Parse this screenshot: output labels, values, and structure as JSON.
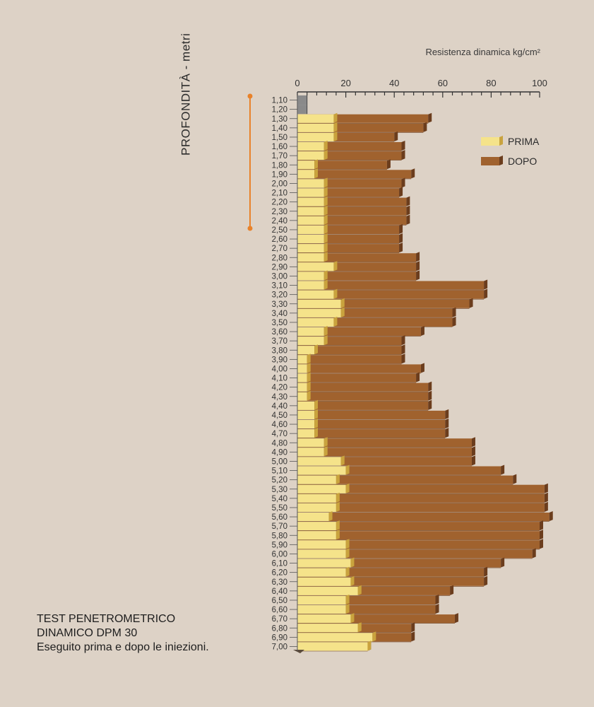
{
  "chart_data": {
    "type": "bar",
    "orientation": "horizontal",
    "xlabel": "Resistenza dinamica kg/cm²",
    "ylabel": "PROFONDITÀ - metri",
    "xlim": [
      0,
      100
    ],
    "x_ticks": [
      "0",
      "20",
      "40",
      "60",
      "80",
      "100"
    ],
    "categories": [
      "1,10",
      "1,20",
      "1,30",
      "1,40",
      "1,50",
      "1,60",
      "1,70",
      "1,80",
      "1,90",
      "2,00",
      "2,10",
      "2,20",
      "2,30",
      "2,40",
      "2,50",
      "2,60",
      "2,70",
      "2,80",
      "2,90",
      "3,00",
      "3,10",
      "3,20",
      "3,30",
      "3,40",
      "3,50",
      "3,60",
      "3,70",
      "3,80",
      "3,90",
      "4,00",
      "4,10",
      "4,20",
      "4,30",
      "4,40",
      "4,50",
      "4,60",
      "4,70",
      "4,80",
      "4,90",
      "5,00",
      "5,10",
      "5,20",
      "5,30",
      "5,40",
      "5,50",
      "5,60",
      "5,70",
      "5,80",
      "5,90",
      "6,00",
      "6,10",
      "6,20",
      "6,30",
      "6,40",
      "6,50",
      "6,60",
      "6,70",
      "6,80",
      "6,90",
      "7,00"
    ],
    "series": [
      {
        "name": "PRIMA",
        "color": "#f5e38a",
        "values": [
          0,
          0,
          15,
          15,
          15,
          11,
          11,
          7,
          7,
          11,
          11,
          11,
          11,
          11,
          11,
          11,
          11,
          11,
          15,
          11,
          11,
          15,
          18,
          18,
          15,
          11,
          11,
          7,
          4,
          4,
          4,
          4,
          4,
          7,
          7,
          7,
          7,
          11,
          11,
          18,
          20,
          16,
          20,
          16,
          16,
          13,
          16,
          16,
          20,
          20,
          22,
          20,
          22,
          25,
          20,
          20,
          22,
          25,
          31,
          29
        ]
      },
      {
        "name": "DOPO",
        "color": "#a0622e",
        "values": [
          4,
          4,
          54,
          52,
          40,
          43,
          43,
          37,
          47,
          43,
          42,
          45,
          45,
          45,
          42,
          42,
          42,
          49,
          49,
          49,
          77,
          77,
          71,
          64,
          64,
          51,
          43,
          43,
          43,
          51,
          49,
          54,
          54,
          54,
          61,
          61,
          61,
          72,
          72,
          72,
          84,
          89,
          102,
          102,
          102,
          104,
          100,
          100,
          100,
          97,
          84,
          77,
          77,
          63,
          57,
          57,
          65,
          47,
          47,
          29
        ]
      }
    ],
    "legend": [
      "PRIMA",
      "DOPO"
    ],
    "legend_position": "right"
  },
  "description": {
    "line1": "TEST PENETROMETRICO",
    "line2": "DINAMICO DPM 30",
    "line3": "Eseguito prima e dopo le iniezioni."
  }
}
